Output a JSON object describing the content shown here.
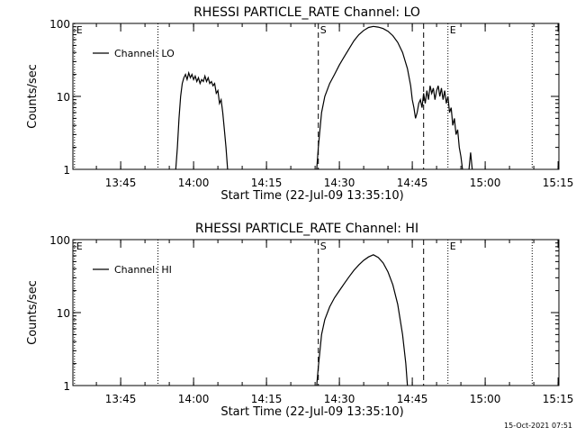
{
  "footer": {
    "timestamp": "15-Oct-2021 07:51"
  },
  "chart_data": [
    {
      "type": "line",
      "title": "RHESSI PARTICLE_RATE Channel: LO",
      "xlabel": "Start Time (22-Jul-09 13:35:10)",
      "ylabel": "Counts/sec",
      "yscale": "log",
      "xlim": [
        "13:35:10",
        "15:15:10"
      ],
      "ylim": [
        1,
        100
      ],
      "grid": false,
      "legend_placement": "top-left",
      "x_ticks": [
        "13:45",
        "14:00",
        "14:15",
        "14:30",
        "14:45",
        "15:00",
        "15:15"
      ],
      "y_ticks": [
        "1",
        "10",
        "100"
      ],
      "vertical_markers": [
        {
          "time": "13:35:30",
          "style": "dotted",
          "label": "E"
        },
        {
          "time": "13:52:40",
          "style": "dotted",
          "label": ""
        },
        {
          "time": "14:25:40",
          "style": "dashed",
          "label": "S"
        },
        {
          "time": "14:47:20",
          "style": "dashed",
          "label": ""
        },
        {
          "time": "14:52:20",
          "style": "dotted",
          "label": "E"
        },
        {
          "time": "15:09:40",
          "style": "dotted",
          "label": ""
        }
      ],
      "series": [
        {
          "name": "Channel: LO",
          "segments": [
            [
              [
                "13:56:20",
                1
              ],
              [
                "13:56:40",
                2
              ],
              [
                "13:57:00",
                5
              ],
              [
                "13:57:20",
                10
              ],
              [
                "13:57:40",
                15
              ],
              [
                "13:58:00",
                18
              ],
              [
                "13:58:20",
                20
              ],
              [
                "13:58:40",
                17
              ],
              [
                "13:59:00",
                21
              ],
              [
                "13:59:20",
                18
              ],
              [
                "13:59:40",
                20
              ],
              [
                "14:00:00",
                17
              ],
              [
                "14:00:20",
                19
              ],
              [
                "14:00:40",
                16
              ],
              [
                "14:01:00",
                18
              ],
              [
                "14:01:20",
                15
              ],
              [
                "14:01:40",
                17
              ],
              [
                "14:02:00",
                16
              ],
              [
                "14:02:20",
                19
              ],
              [
                "14:02:40",
                16
              ],
              [
                "14:03:00",
                18
              ],
              [
                "14:03:20",
                15
              ],
              [
                "14:03:40",
                16
              ],
              [
                "14:04:00",
                14
              ],
              [
                "14:04:20",
                15
              ],
              [
                "14:04:40",
                11
              ],
              [
                "14:05:00",
                12
              ],
              [
                "14:05:20",
                8
              ],
              [
                "14:05:40",
                9
              ],
              [
                "14:06:00",
                6
              ],
              [
                "14:06:20",
                3.5
              ],
              [
                "14:06:40",
                2
              ],
              [
                "14:07:00",
                1
              ]
            ],
            [
              [
                "14:25:20",
                1
              ],
              [
                "14:25:40",
                2
              ],
              [
                "14:26:00",
                3.5
              ],
              [
                "14:26:20",
                6
              ],
              [
                "14:27:00",
                10
              ],
              [
                "14:28:00",
                15
              ],
              [
                "14:29:00",
                20
              ],
              [
                "14:30:00",
                27
              ],
              [
                "14:31:00",
                35
              ],
              [
                "14:32:00",
                45
              ],
              [
                "14:33:00",
                58
              ],
              [
                "14:34:00",
                70
              ],
              [
                "14:35:00",
                80
              ],
              [
                "14:36:00",
                88
              ],
              [
                "14:37:00",
                91
              ],
              [
                "14:38:00",
                89
              ],
              [
                "14:39:00",
                85
              ],
              [
                "14:40:00",
                78
              ],
              [
                "14:41:00",
                68
              ],
              [
                "14:42:00",
                55
              ],
              [
                "14:43:00",
                40
              ],
              [
                "14:44:00",
                24
              ],
              [
                "14:44:40",
                14
              ],
              [
                "14:45:00",
                9
              ],
              [
                "14:45:20",
                7
              ],
              [
                "14:45:40",
                5
              ],
              [
                "14:46:00",
                6
              ],
              [
                "14:46:20",
                8
              ],
              [
                "14:46:40",
                9
              ],
              [
                "14:47:00",
                7
              ],
              [
                "14:47:20",
                11
              ],
              [
                "14:47:40",
                8
              ],
              [
                "14:48:00",
                12
              ],
              [
                "14:48:20",
                9
              ],
              [
                "14:48:40",
                14
              ],
              [
                "14:49:00",
                11
              ],
              [
                "14:49:20",
                13
              ],
              [
                "14:49:40",
                9
              ],
              [
                "14:50:00",
                12
              ],
              [
                "14:50:20",
                14
              ],
              [
                "14:50:40",
                10
              ],
              [
                "14:51:00",
                13
              ],
              [
                "14:51:20",
                9
              ],
              [
                "14:51:40",
                12
              ],
              [
                "14:52:00",
                8
              ],
              [
                "14:52:20",
                10
              ],
              [
                "14:52:40",
                6
              ],
              [
                "14:53:00",
                7
              ],
              [
                "14:53:20",
                4
              ],
              [
                "14:53:40",
                5
              ],
              [
                "14:54:00",
                3
              ],
              [
                "14:54:20",
                3.5
              ],
              [
                "14:54:40",
                2
              ],
              [
                "14:55:00",
                1.5
              ],
              [
                "14:55:20",
                1
              ]
            ],
            [
              [
                "14:56:40",
                1
              ],
              [
                "14:57:00",
                1.7
              ],
              [
                "14:57:20",
                1
              ]
            ]
          ]
        }
      ]
    },
    {
      "type": "line",
      "title": "RHESSI PARTICLE_RATE Channel: HI",
      "xlabel": "Start Time (22-Jul-09 13:35:10)",
      "ylabel": "Counts/sec",
      "yscale": "log",
      "xlim": [
        "13:35:10",
        "15:15:10"
      ],
      "ylim": [
        1,
        100
      ],
      "grid": false,
      "legend_placement": "top-left",
      "x_ticks": [
        "13:45",
        "14:00",
        "14:15",
        "14:30",
        "14:45",
        "15:00",
        "15:15"
      ],
      "y_ticks": [
        "1",
        "10",
        "100"
      ],
      "vertical_markers": [
        {
          "time": "13:35:30",
          "style": "dotted",
          "label": "E"
        },
        {
          "time": "13:52:40",
          "style": "dotted",
          "label": ""
        },
        {
          "time": "14:25:40",
          "style": "dashed",
          "label": "S"
        },
        {
          "time": "14:47:20",
          "style": "dashed",
          "label": ""
        },
        {
          "time": "14:52:20",
          "style": "dotted",
          "label": "E"
        },
        {
          "time": "15:09:40",
          "style": "dotted",
          "label": ""
        }
      ],
      "series": [
        {
          "name": "Channel: HI",
          "segments": [
            [
              [
                "14:25:20",
                1
              ],
              [
                "14:25:40",
                1.8
              ],
              [
                "14:26:00",
                3
              ],
              [
                "14:26:20",
                5
              ],
              [
                "14:27:00",
                8
              ],
              [
                "14:28:00",
                12
              ],
              [
                "14:29:00",
                16
              ],
              [
                "14:30:00",
                20
              ],
              [
                "14:31:00",
                25
              ],
              [
                "14:32:00",
                31
              ],
              [
                "14:33:00",
                38
              ],
              [
                "14:34:00",
                45
              ],
              [
                "14:35:00",
                52
              ],
              [
                "14:36:00",
                58
              ],
              [
                "14:37:00",
                62
              ],
              [
                "14:38:00",
                57
              ],
              [
                "14:39:00",
                48
              ],
              [
                "14:40:00",
                36
              ],
              [
                "14:41:00",
                24
              ],
              [
                "14:42:00",
                13
              ],
              [
                "14:43:00",
                5
              ],
              [
                "14:43:40",
                2
              ],
              [
                "14:44:00",
                1
              ]
            ]
          ]
        }
      ]
    }
  ]
}
